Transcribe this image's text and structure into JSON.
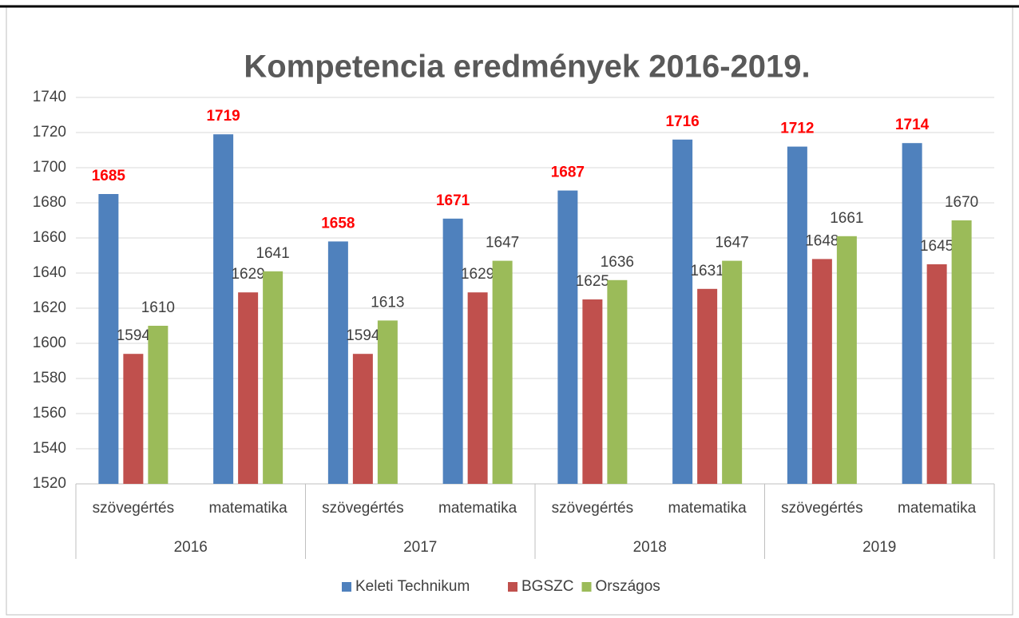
{
  "chart_data": {
    "type": "bar",
    "title": "Kompetencia eredmények 2016-2019.",
    "categories": [
      "szövegértés",
      "matematika",
      "szövegértés",
      "matematika",
      "szövegértés",
      "matematika",
      "szövegértés",
      "matematika"
    ],
    "category_groups": [
      "2016",
      "2017",
      "2018",
      "2019"
    ],
    "series": [
      {
        "name": "Keleti Technikum",
        "color": "#4f81bd",
        "label_color": "#ff0000",
        "values": [
          1685,
          1719,
          1658,
          1671,
          1687,
          1716,
          1712,
          1714
        ]
      },
      {
        "name": "BGSZC",
        "color": "#c0504d",
        "label_color": "#404040",
        "values": [
          1594,
          1629,
          1594,
          1629,
          1625,
          1631,
          1648,
          1645
        ]
      },
      {
        "name": "Országos",
        "color": "#9bbb59",
        "label_color": "#404040",
        "values": [
          1610,
          1641,
          1613,
          1647,
          1636,
          1647,
          1661,
          1670
        ]
      }
    ],
    "ylim": [
      1520,
      1740
    ],
    "yticks": [
      1520,
      1540,
      1560,
      1580,
      1600,
      1620,
      1640,
      1660,
      1680,
      1700,
      1720,
      1740
    ],
    "grid": true,
    "legend": "bottom"
  }
}
